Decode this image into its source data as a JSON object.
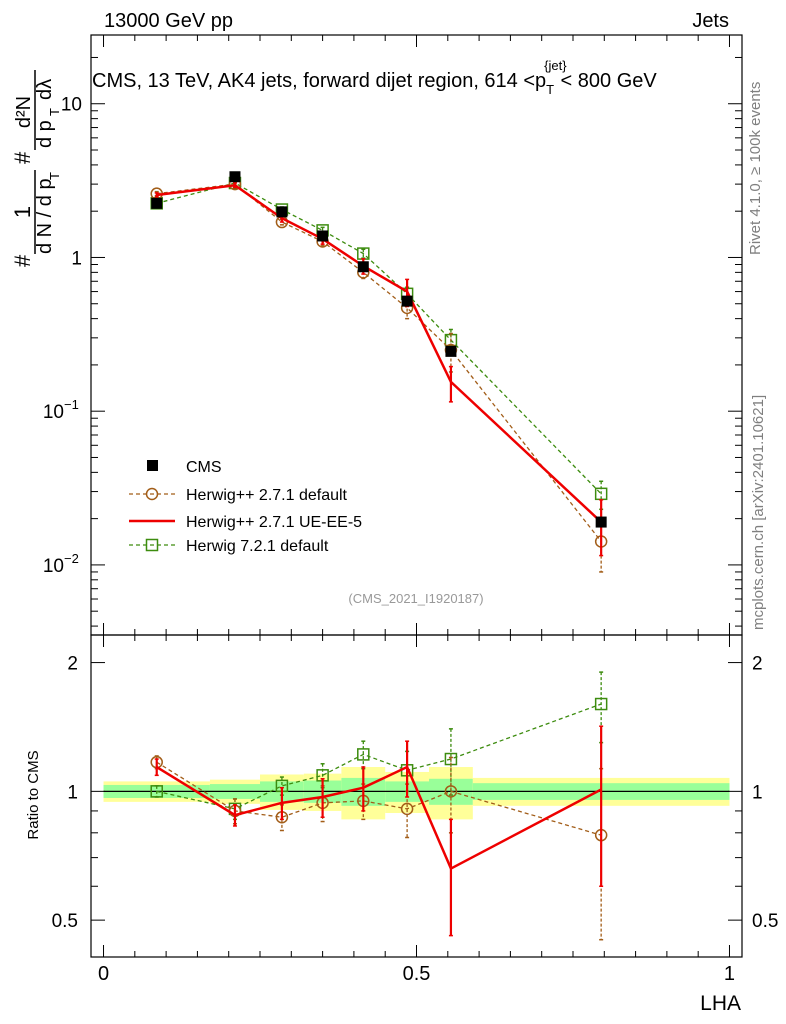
{
  "header": {
    "left": "13000 GeV pp",
    "right": "Jets"
  },
  "side_labels": {
    "rivet": "Rivet 4.1.0, ≥ 100k events",
    "mcplots": "mcplots.cern.ch [arXiv:2401.10621]"
  },
  "chart_data": {
    "type": "line",
    "title": "CMS, 13 TeV, AK4 jets, forward dijet region, 614 <p",
    "title_sub": "T",
    "title_sup": "{jet}",
    "title_end": "< 800 GeV",
    "reference": "(CMS_2021_I1920187)",
    "xlabel": "LHA",
    "ylabel_parts": {
      "hash1": "#",
      "one": "1",
      "dN": "d N / d p",
      "T1": "T",
      "hash2": "#",
      "d2N": "d²N",
      "dpdl": "d p",
      "T2": "T",
      "dlam": "dλ"
    },
    "ratio_ylabel": "Ratio to CMS",
    "xlim": [
      -0.02,
      1.02
    ],
    "ylim_main": [
      0.0035,
      28
    ],
    "ylim_ratio": [
      0.41,
      2.32
    ],
    "x_ticks": [
      {
        "value": 0,
        "label": "0"
      },
      {
        "value": 0.5,
        "label": "0.5"
      },
      {
        "value": 1,
        "label": "1"
      }
    ],
    "y_ticks_main": [
      {
        "value": 10,
        "label": "10",
        "sup": ""
      },
      {
        "value": 1,
        "label": "1",
        "sup": ""
      },
      {
        "value": 0.1,
        "label": "10",
        "sup": "−1"
      },
      {
        "value": 0.01,
        "label": "10",
        "sup": "−2"
      }
    ],
    "y_ticks_ratio": [
      {
        "value": 2,
        "label": "2"
      },
      {
        "value": 1,
        "label": "1"
      },
      {
        "value": 0.5,
        "label": "0.5"
      }
    ],
    "bins": [
      [
        0,
        0.17
      ],
      [
        0.17,
        0.25
      ],
      [
        0.25,
        0.32
      ],
      [
        0.32,
        0.38
      ],
      [
        0.38,
        0.45
      ],
      [
        0.45,
        0.52
      ],
      [
        0.52,
        0.59
      ],
      [
        0.59,
        1.0
      ]
    ],
    "band_stat": [
      0.035,
      0.04,
      0.055,
      0.06,
      0.075,
      0.055,
      0.07,
      0.045
    ],
    "band_total": [
      0.055,
      0.065,
      0.095,
      0.1,
      0.14,
      0.11,
      0.14,
      0.075
    ],
    "x": [
      0.085,
      0.21,
      0.285,
      0.35,
      0.415,
      0.485,
      0.555,
      0.795
    ],
    "series": [
      {
        "name": "CMS",
        "style": "data",
        "color": "#000000",
        "values": [
          2.25,
          3.35,
          1.98,
          1.38,
          0.87,
          0.52,
          0.245,
          0.019
        ],
        "errors": [
          0.06,
          0.08,
          0.05,
          0.04,
          0.03,
          0.02,
          0.012,
          0.0012
        ],
        "ratio": [
          1,
          1,
          1,
          1,
          1,
          1,
          1,
          1
        ],
        "ratio_err": [
          0,
          0,
          0,
          0,
          0,
          0,
          0,
          0
        ]
      },
      {
        "name": "Herwig++ 2.7.1 default",
        "style": "circle",
        "color": "#a25d18",
        "values": [
          2.6,
          3.0,
          1.7,
          1.27,
          0.8,
          0.47,
          0.25,
          0.0142
        ],
        "errors": [
          0.08,
          0.1,
          0.07,
          0.08,
          0.07,
          0.07,
          0.07,
          0.0052
        ],
        "ratio": [
          1.17,
          0.9,
          0.87,
          0.94,
          0.95,
          0.91,
          1.0,
          0.79
        ],
        "ratio_err": [
          0.04,
          0.06,
          0.06,
          0.09,
          0.09,
          0.13,
          0.2,
          0.34
        ]
      },
      {
        "name": "Herwig++ 2.7.1 UE-EE-5",
        "style": "line",
        "color": "#ee0000",
        "values": [
          2.55,
          2.95,
          1.8,
          1.32,
          0.88,
          0.6,
          0.155,
          0.019
        ],
        "errors": [
          0.08,
          0.1,
          0.1,
          0.1,
          0.1,
          0.12,
          0.04,
          0.0075
        ],
        "ratio": [
          1.14,
          0.88,
          0.94,
          0.97,
          1.02,
          1.14,
          0.66,
          1.01
        ],
        "ratio_err": [
          0.05,
          0.05,
          0.08,
          0.1,
          0.12,
          0.17,
          0.2,
          0.41
        ]
      },
      {
        "name": "Herwig 7.2.1 default",
        "style": "square",
        "color": "#3d8c0f",
        "values": [
          2.25,
          3.05,
          2.05,
          1.5,
          1.06,
          0.58,
          0.29,
          0.029
        ],
        "errors": [
          0.06,
          0.1,
          0.08,
          0.07,
          0.07,
          0.06,
          0.05,
          0.006
        ],
        "ratio": [
          1.0,
          0.91,
          1.03,
          1.09,
          1.22,
          1.12,
          1.19,
          1.6
        ],
        "ratio_err": [
          0.03,
          0.05,
          0.05,
          0.07,
          0.09,
          0.12,
          0.21,
          0.3
        ]
      }
    ],
    "colors": {
      "stat_band": "#99ff99",
      "total_band": "#ffff99"
    }
  }
}
